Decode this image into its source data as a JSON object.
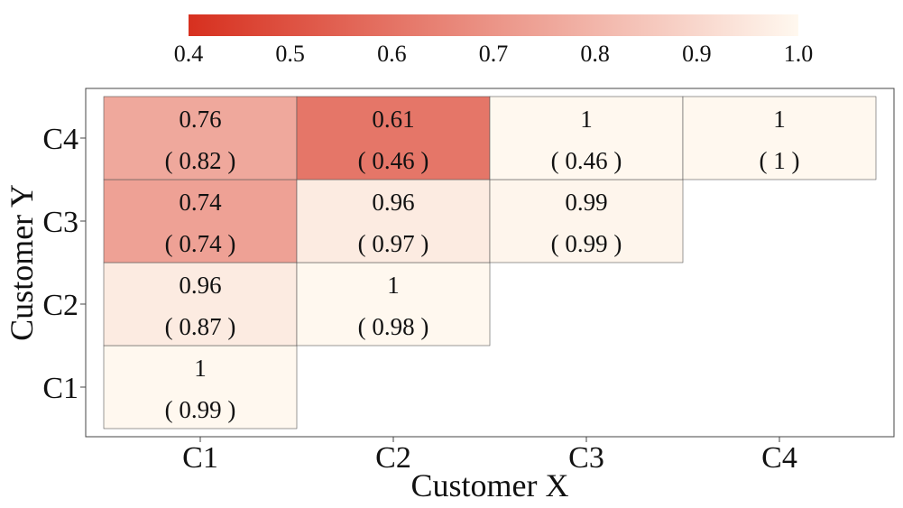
{
  "chart_data": {
    "type": "heatmap",
    "title": "",
    "xlabel": "Customer X",
    "ylabel": "Customer Y",
    "x_categories": [
      "C1",
      "C2",
      "C3",
      "C4"
    ],
    "y_categories": [
      "C1",
      "C2",
      "C3",
      "C4"
    ],
    "colorbar": {
      "min": 0.4,
      "max": 1.0,
      "ticks": [
        "0.4",
        "0.5",
        "0.6",
        "0.7",
        "0.8",
        "0.9",
        "1.0"
      ],
      "low_color": "#d7301f",
      "high_color": "#fff8ef",
      "position": "top"
    },
    "cells": [
      {
        "x": "C1",
        "y": "C1",
        "value": 1,
        "label": "1",
        "sublabel": "( 0.99 )"
      },
      {
        "x": "C1",
        "y": "C2",
        "value": 0.96,
        "label": "0.96",
        "sublabel": "( 0.87 )"
      },
      {
        "x": "C2",
        "y": "C2",
        "value": 1,
        "label": "1",
        "sublabel": "( 0.98 )"
      },
      {
        "x": "C1",
        "y": "C3",
        "value": 0.74,
        "label": "0.74",
        "sublabel": "( 0.74 )"
      },
      {
        "x": "C2",
        "y": "C3",
        "value": 0.96,
        "label": "0.96",
        "sublabel": "( 0.97 )"
      },
      {
        "x": "C3",
        "y": "C3",
        "value": 0.99,
        "label": "0.99",
        "sublabel": "( 0.99 )"
      },
      {
        "x": "C1",
        "y": "C4",
        "value": 0.76,
        "label": "0.76",
        "sublabel": "( 0.82 )"
      },
      {
        "x": "C2",
        "y": "C4",
        "value": 0.61,
        "label": "0.61",
        "sublabel": "( 0.46 )"
      },
      {
        "x": "C3",
        "y": "C4",
        "value": 1,
        "label": "1",
        "sublabel": "( 0.46 )"
      },
      {
        "x": "C4",
        "y": "C4",
        "value": 1,
        "label": "1",
        "sublabel": "( 1 )"
      }
    ]
  }
}
